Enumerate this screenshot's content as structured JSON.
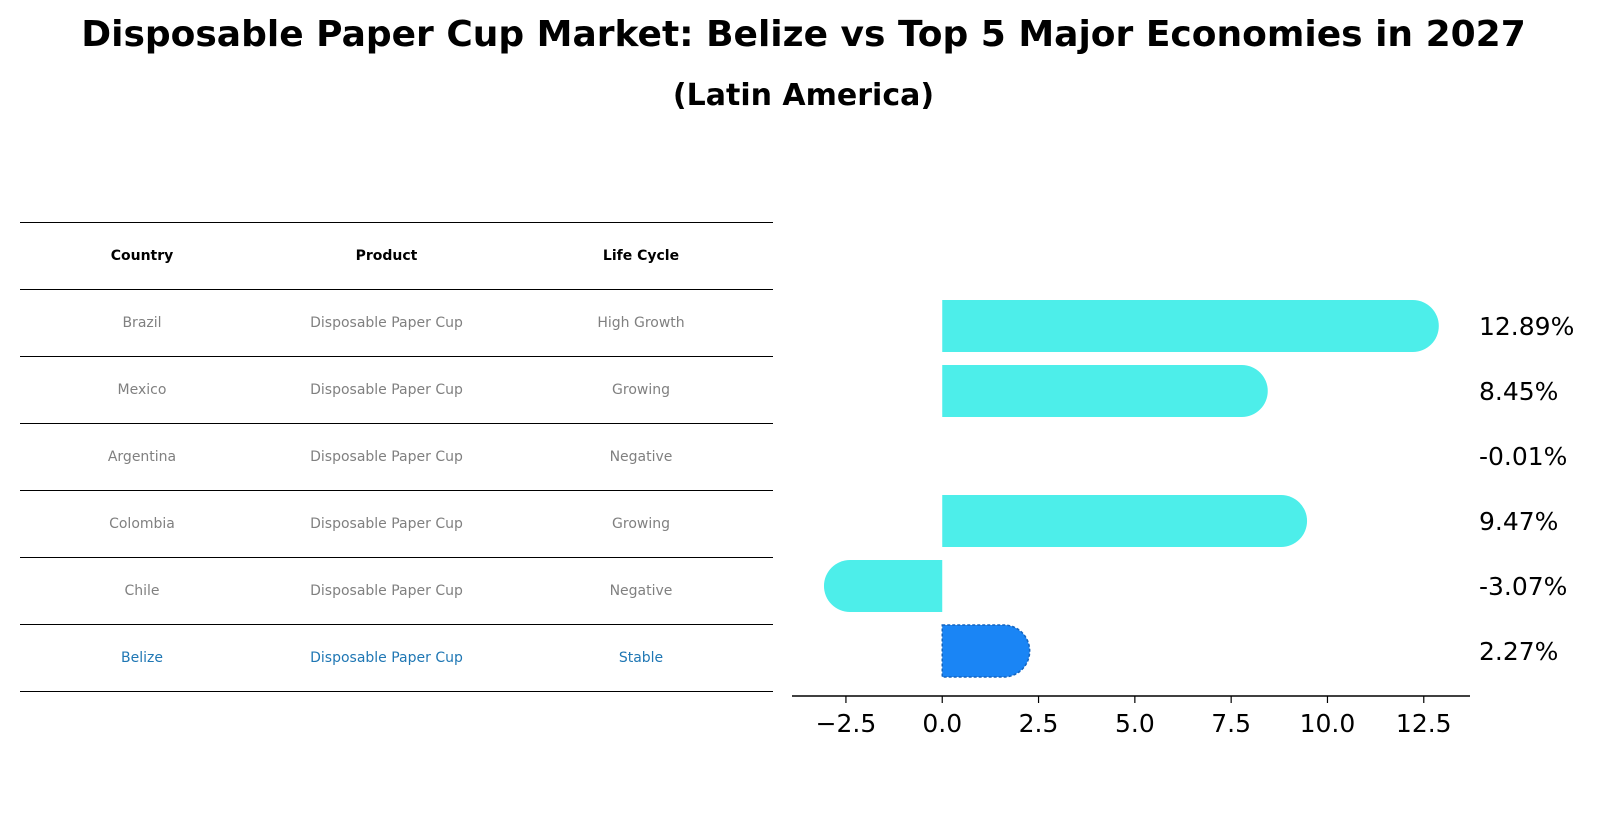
{
  "title": "Disposable Paper Cup Market: Belize vs Top 5 Major Economies in 2027",
  "subtitle": "(Latin America)",
  "table": {
    "headers": [
      "Country",
      "Product",
      "Life Cycle"
    ],
    "rows": [
      {
        "country": "Brazil",
        "product": "Disposable Paper Cup",
        "life_cycle": "High Growth"
      },
      {
        "country": "Mexico",
        "product": "Disposable Paper Cup",
        "life_cycle": "Growing"
      },
      {
        "country": "Argentina",
        "product": "Disposable Paper Cup",
        "life_cycle": "Negative"
      },
      {
        "country": "Colombia",
        "product": "Disposable Paper Cup",
        "life_cycle": "Growing"
      },
      {
        "country": "Chile",
        "product": "Disposable Paper Cup",
        "life_cycle": "Negative"
      },
      {
        "country": "Belize",
        "product": "Disposable Paper Cup",
        "life_cycle": "Stable"
      }
    ],
    "highlight_row": 5,
    "text_color": "#808080",
    "highlight_color": "#1f77b4"
  },
  "chart_data": {
    "type": "bar",
    "orientation": "horizontal",
    "categories": [
      "Brazil",
      "Mexico",
      "Argentina",
      "Colombia",
      "Chile",
      "Belize"
    ],
    "values": [
      12.89,
      8.45,
      -0.01,
      9.47,
      -3.07,
      2.27
    ],
    "value_labels": [
      "12.89%",
      "8.45%",
      "-0.01%",
      "9.47%",
      "-3.07%",
      "2.27%"
    ],
    "x_ticks": [
      -2.5,
      0.0,
      2.5,
      5.0,
      7.5,
      10.0,
      12.5
    ],
    "x_tick_labels": [
      "−2.5",
      "0.0",
      "2.5",
      "5.0",
      "7.5",
      "10.0",
      "12.5"
    ],
    "xlim": [
      -3.9,
      13.7
    ],
    "highlight_index": 5,
    "bar_color": "#4deeea",
    "highlight_color": "#1a85f5",
    "rounded_ends": true
  }
}
